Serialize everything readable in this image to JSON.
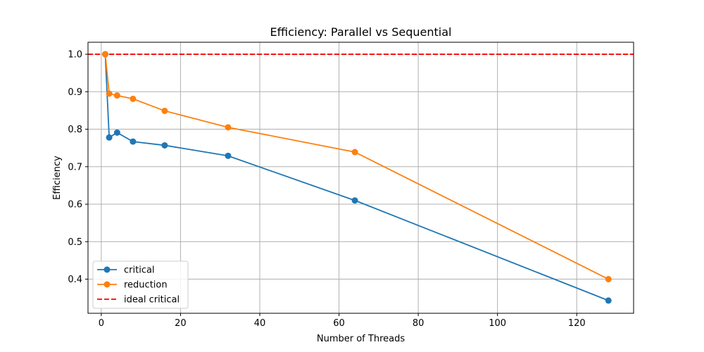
{
  "chart_data": {
    "type": "line",
    "title": "Efficiency: Parallel vs Sequential",
    "xlabel": "Number of Threads",
    "ylabel": "Efficiency",
    "xlim": [
      -3.35,
      134.35
    ],
    "ylim": [
      0.309,
      1.032
    ],
    "xticks": [
      0,
      20,
      40,
      60,
      80,
      100,
      120
    ],
    "yticks": [
      0.4,
      0.5,
      0.6,
      0.7,
      0.8,
      0.9,
      1.0
    ],
    "grid": true,
    "legend_position": "bottom-left",
    "x": [
      1,
      2,
      4,
      8,
      16,
      32,
      64,
      128
    ],
    "series": [
      {
        "name": "critical",
        "color": "#1f77b4",
        "marker": "circle",
        "values": [
          1.0,
          0.778,
          0.791,
          0.767,
          0.757,
          0.729,
          0.61,
          0.343
        ]
      },
      {
        "name": "reduction",
        "color": "#ff7f0e",
        "marker": "circle",
        "values": [
          1.0,
          0.895,
          0.89,
          0.881,
          0.849,
          0.805,
          0.739,
          0.4
        ]
      }
    ],
    "reference_lines": [
      {
        "name": "ideal critical",
        "color": "#ff0000",
        "style": "dashed",
        "y": 1.0
      }
    ]
  }
}
